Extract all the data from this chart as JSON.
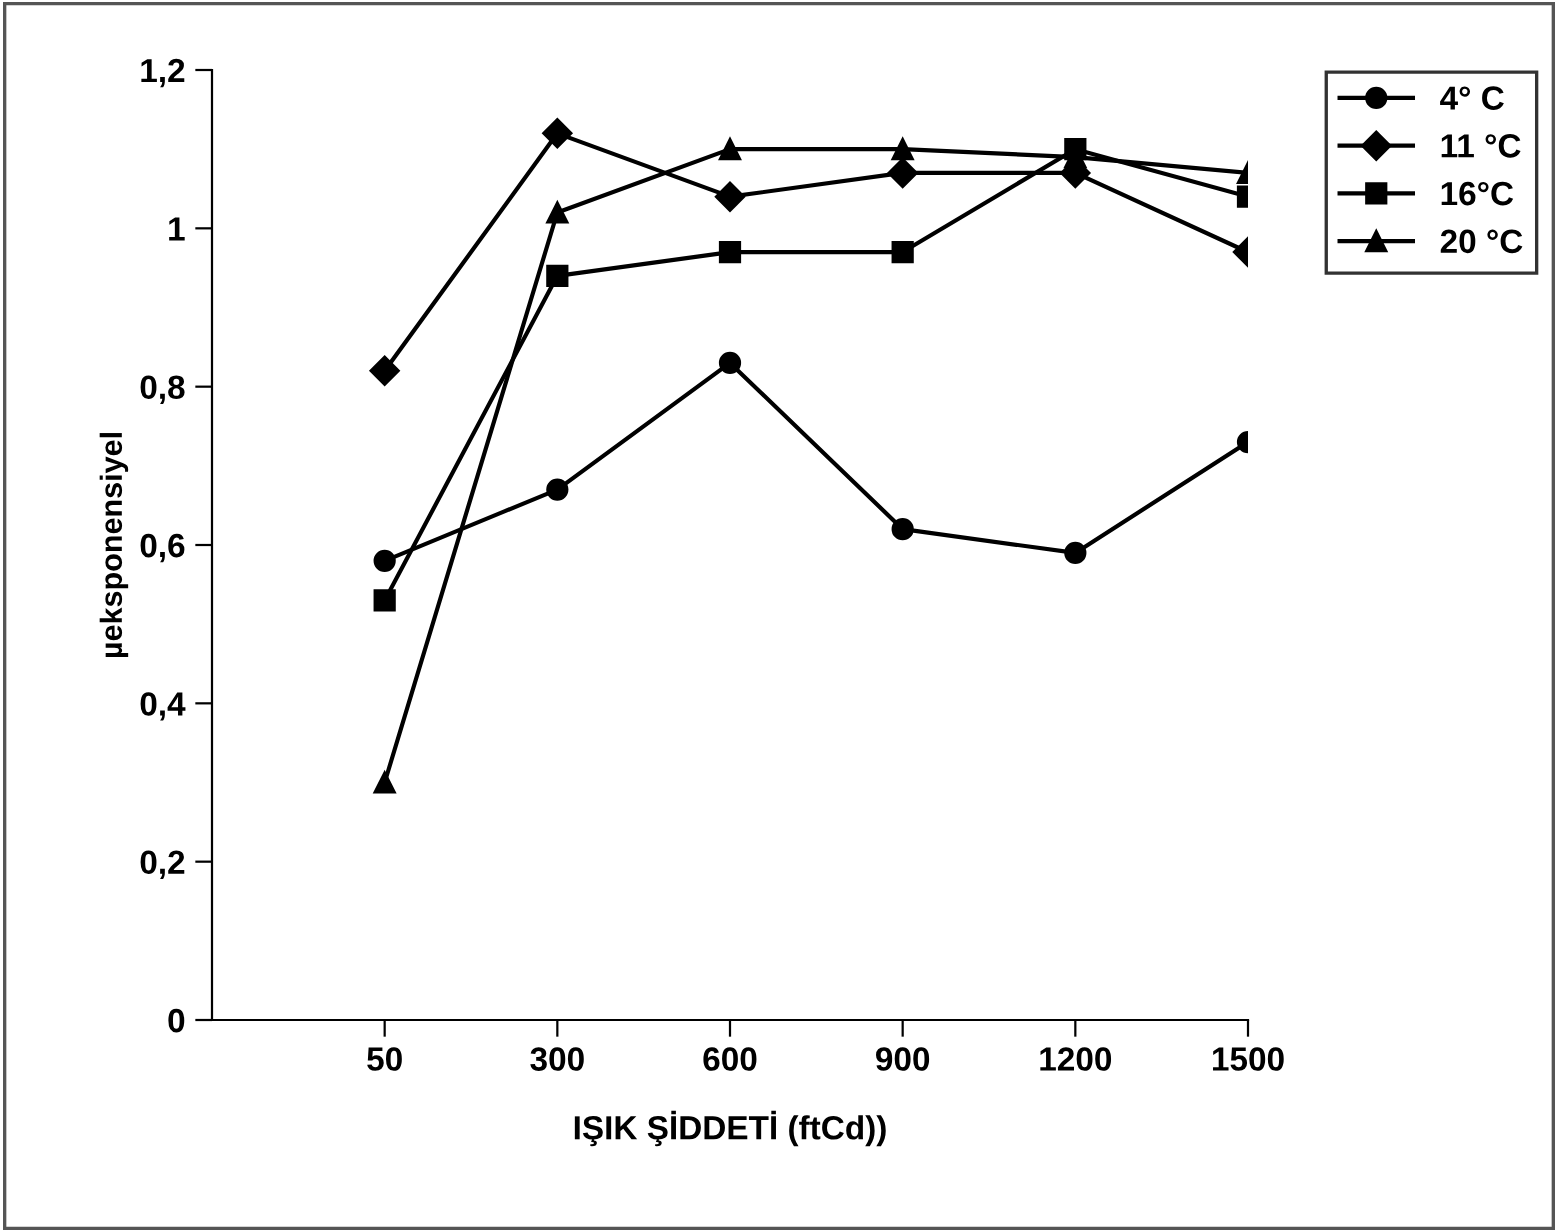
{
  "chart_data": {
    "type": "line",
    "xlabel": "IŞIK ŞİDDETİ (ftCd))",
    "ylabel": "µeksponensiyel",
    "categories": [
      "50",
      "300",
      "600",
      "900",
      "1200",
      "1500"
    ],
    "ylim": [
      0,
      1.2
    ],
    "yticks": [
      {
        "value": 0,
        "label": "0"
      },
      {
        "value": 0.2,
        "label": "0,2"
      },
      {
        "value": 0.4,
        "label": "0,4"
      },
      {
        "value": 0.6,
        "label": "0,6"
      },
      {
        "value": 0.8,
        "label": "0,8"
      },
      {
        "value": 1,
        "label": "1"
      },
      {
        "value": 1.2,
        "label": "1,2"
      }
    ],
    "grid": false,
    "legend": "top right",
    "line_style": "solid",
    "series": [
      {
        "name": "4° C",
        "color": "#000000",
        "marker": "circle",
        "values": [
          0.58,
          0.67,
          0.83,
          0.62,
          0.59,
          0.73
        ]
      },
      {
        "name": "11 °C",
        "color": "#000000",
        "marker": "diamond",
        "values": [
          0.82,
          1.12,
          1.04,
          1.07,
          1.07,
          0.97
        ]
      },
      {
        "name": "16°C",
        "color": "#000000",
        "marker": "square",
        "values": [
          0.53,
          0.94,
          0.97,
          0.97,
          1.1,
          1.04
        ]
      },
      {
        "name": "20 °C",
        "color": "#000000",
        "marker": "triangle",
        "values": [
          0.3,
          1.02,
          1.1,
          1.1,
          1.09,
          1.07
        ]
      }
    ]
  }
}
